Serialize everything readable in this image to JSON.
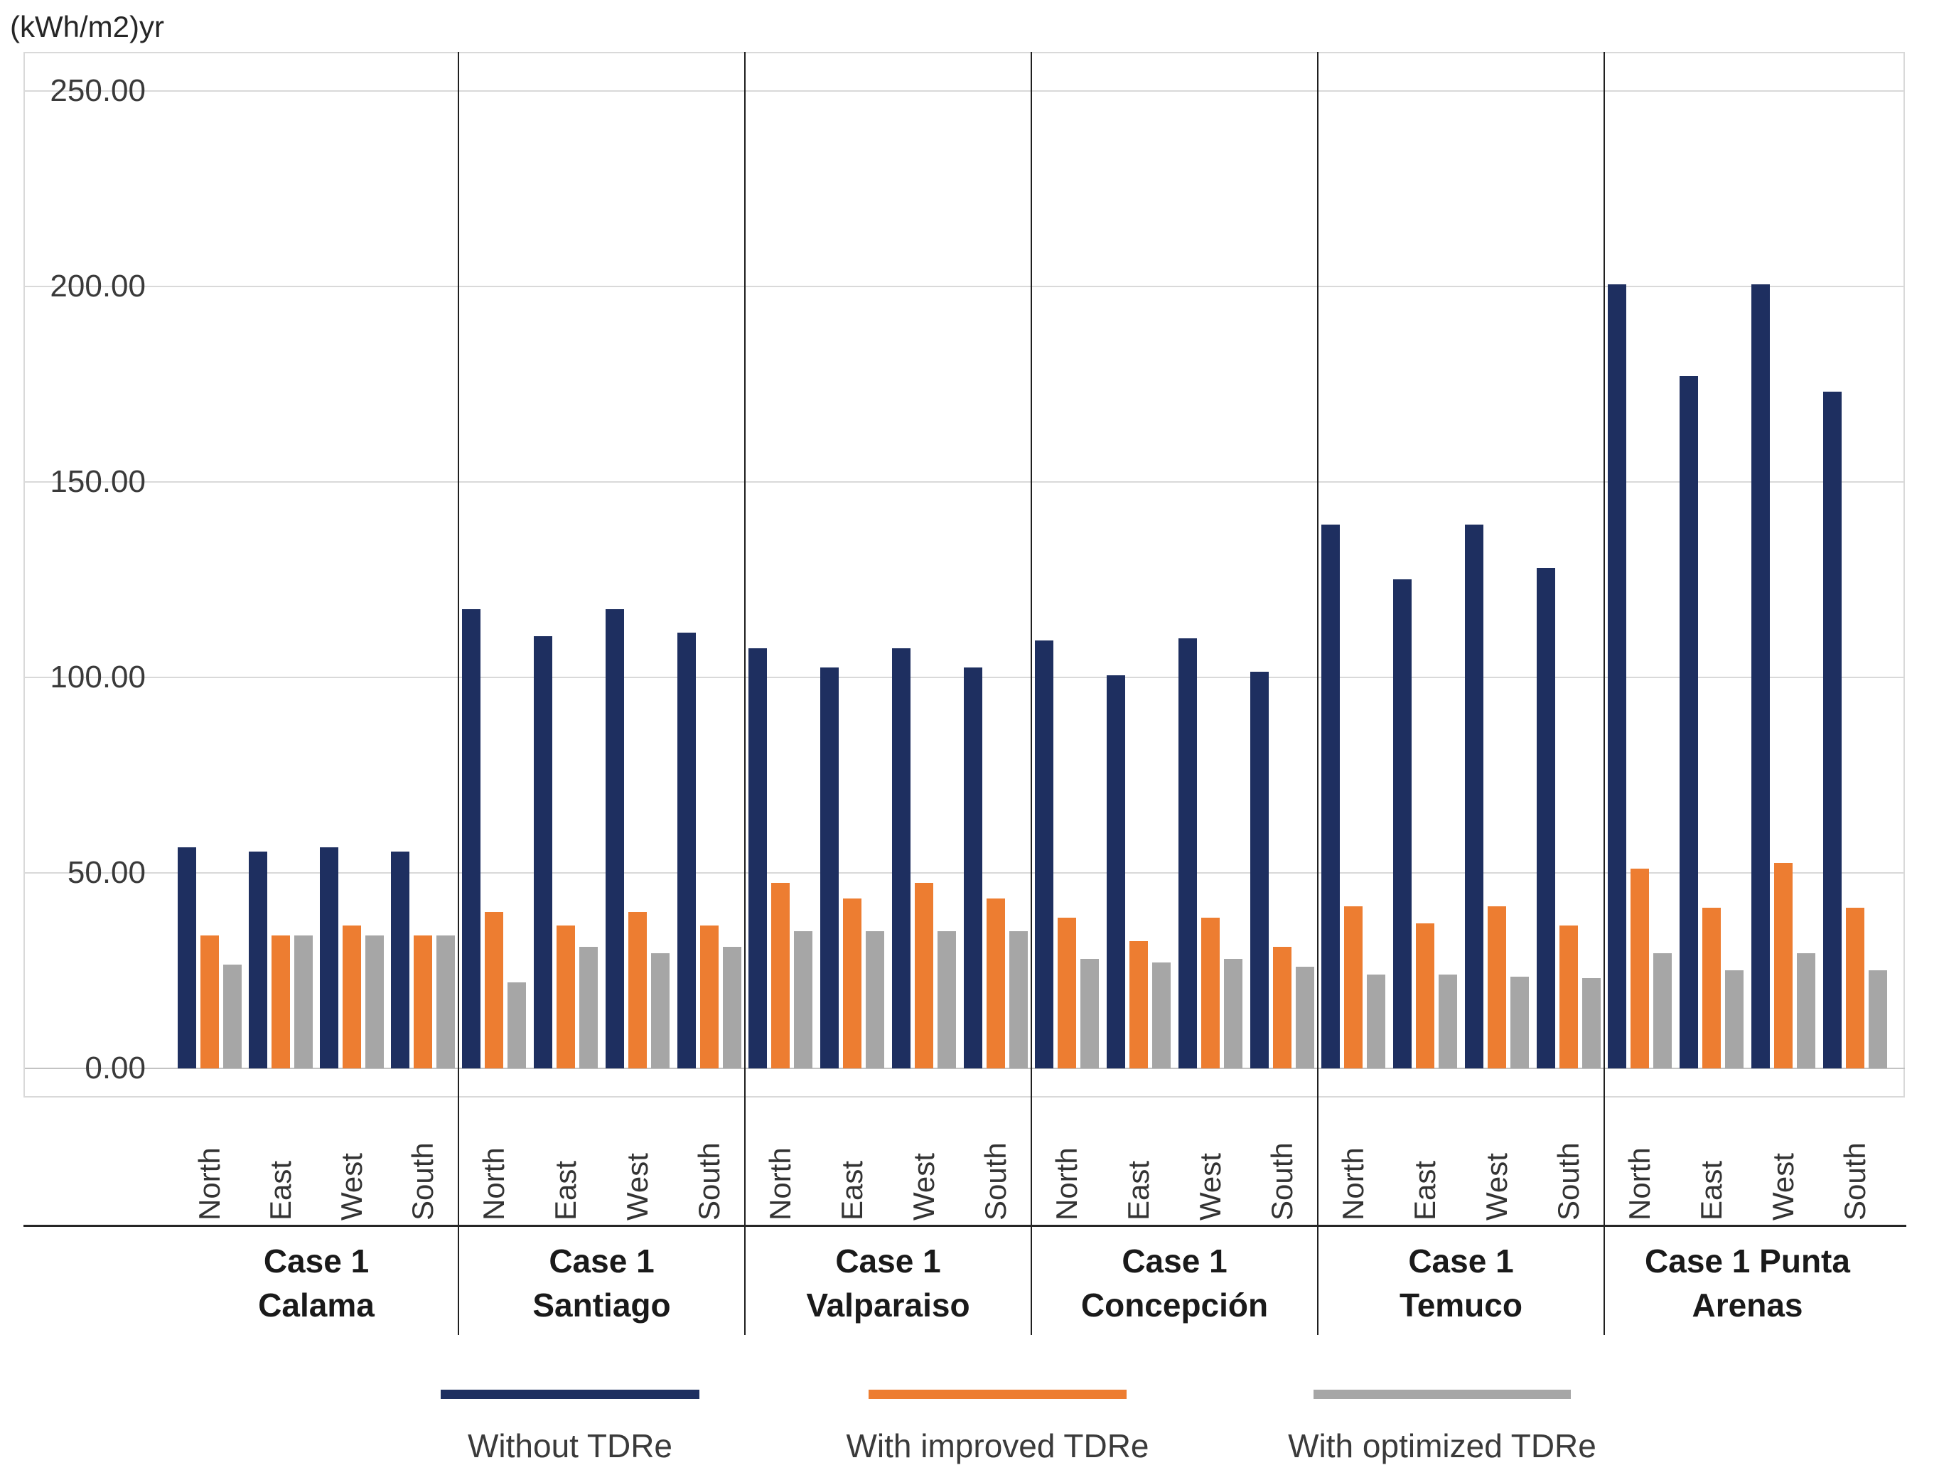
{
  "chart_data": {
    "type": "bar",
    "title": "(kWh/m2)yr",
    "ylabel": "(kWh/m2)yr",
    "xlabel": "",
    "ylim": [
      0,
      250
    ],
    "ytick_labels": [
      "250.00",
      "200.00",
      "150.00",
      "100.00",
      "50.00",
      "0.00"
    ],
    "grid": true,
    "legend_position": "bottom",
    "orientations": [
      "North",
      "East",
      "West",
      "South"
    ],
    "groups": [
      {
        "city": "Calama",
        "label_lines": [
          "Case 1",
          "Calama"
        ]
      },
      {
        "city": "Santiago",
        "label_lines": [
          "Case 1",
          "Santiago"
        ]
      },
      {
        "city": "Valparaiso",
        "label_lines": [
          "Case 1",
          "Valparaiso"
        ]
      },
      {
        "city": "Concepción",
        "label_lines": [
          "Case 1",
          "Concepción"
        ]
      },
      {
        "city": "Temuco",
        "label_lines": [
          "Case 1",
          "Temuco"
        ]
      },
      {
        "city": "Punta Arenas",
        "label_lines": [
          "Case 1 Punta",
          "Arenas"
        ]
      }
    ],
    "series": [
      {
        "name": "Without TDRe",
        "color": "#1e2f60",
        "values": [
          [
            56.5,
            55.5,
            56.5,
            55.5
          ],
          [
            117.5,
            110.5,
            117.5,
            111.5
          ],
          [
            107.5,
            102.5,
            107.5,
            102.5
          ],
          [
            109.5,
            100.5,
            110.0,
            101.5
          ],
          [
            139.0,
            125.0,
            139.0,
            128.0
          ],
          [
            200.5,
            177.0,
            200.5,
            173.0
          ]
        ]
      },
      {
        "name": "With improved  TDRe",
        "color": "#ed7d31",
        "values": [
          [
            34.0,
            34.0,
            36.5,
            34.0
          ],
          [
            40.0,
            36.5,
            40.0,
            36.5
          ],
          [
            47.5,
            43.5,
            47.5,
            43.5
          ],
          [
            38.5,
            32.5,
            38.5,
            31.0
          ],
          [
            41.5,
            37.0,
            41.5,
            36.5
          ],
          [
            51.0,
            41.0,
            52.5,
            41.0
          ]
        ]
      },
      {
        "name": "With optimized TDRe",
        "color": "#a6a6a6",
        "values": [
          [
            26.5,
            34.0,
            34.0,
            34.0
          ],
          [
            22.0,
            31.0,
            29.5,
            31.0
          ],
          [
            35.0,
            35.0,
            35.0,
            35.0
          ],
          [
            28.0,
            27.0,
            28.0,
            26.0
          ],
          [
            24.0,
            24.0,
            23.5,
            23.0
          ],
          [
            29.5,
            25.0,
            29.5,
            25.0
          ]
        ]
      }
    ]
  }
}
